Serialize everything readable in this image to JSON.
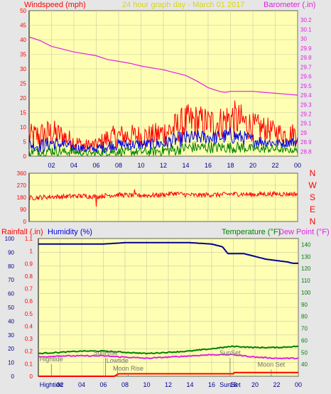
{
  "colors": {
    "frame_bg": "#e6e6e6",
    "plot_bg": "#ffffb4",
    "grid": "#c8c8a0",
    "red": "#ff0000",
    "blue": "#0000e0",
    "green": "#008000",
    "magenta": "#e020e0",
    "navy": "#000090",
    "title": "#d8d800",
    "gray_text": "#707070"
  },
  "header": {
    "left_title": "Windspeed (mph)",
    "center_title": "24 hour graph day - March 01 2017",
    "right_title": "Barometer (.in)"
  },
  "bottom_header": {
    "rainfall": "Rainfall (.in)",
    "humidity": "Humidity (%)",
    "temperature": "Temperature (°F)",
    "dewpoint": "Dew Point (°F)"
  },
  "x_ticks": [
    "02",
    "04",
    "06",
    "08",
    "10",
    "12",
    "14",
    "16",
    "18",
    "20",
    "22",
    "00"
  ],
  "chart_data": [
    {
      "type": "line",
      "name": "windspeed-barometer",
      "x_range_hours": [
        0,
        24
      ],
      "y_left": {
        "ticks": [
          0,
          5,
          10,
          15,
          20,
          25,
          30,
          35,
          40,
          45,
          50
        ],
        "ylim": [
          0,
          50
        ]
      },
      "y_right": {
        "ticks": [
          28.8,
          28.9,
          29.0,
          29.1,
          29.2,
          29.3,
          29.4,
          29.5,
          29.6,
          29.7,
          29.8,
          29.9,
          30.0,
          30.1,
          30.2
        ],
        "tick_labels": [
          "28.8",
          "28.9",
          "29",
          "29.1",
          "29.2",
          "29.3",
          "29.4",
          "29.5",
          "29.6",
          "29.7",
          "29.8",
          "29.9",
          "30",
          "30.1",
          "30.2"
        ],
        "ylim": [
          28.75,
          30.3
        ]
      },
      "series": [
        {
          "color": "red",
          "axis": "left",
          "x": [
            0,
            1,
            2,
            3,
            4,
            5,
            6,
            7,
            8,
            9,
            10,
            11,
            12,
            13,
            14,
            15,
            16,
            17,
            18,
            19,
            20,
            21,
            22,
            23,
            24
          ],
          "y_low": [
            3,
            2,
            3,
            3,
            2,
            1,
            2,
            2,
            3,
            3,
            3,
            3,
            3,
            4,
            5,
            6,
            6,
            6,
            6,
            6,
            5,
            5,
            5,
            4,
            4
          ],
          "y_high": [
            11,
            12,
            13,
            11,
            8,
            6,
            6,
            10,
            11,
            11,
            11,
            11,
            13,
            15,
            18,
            18,
            17,
            17,
            20,
            18,
            15,
            14,
            12,
            11,
            12
          ]
        },
        {
          "color": "blue",
          "axis": "left",
          "x": [
            0,
            1,
            2,
            3,
            4,
            5,
            6,
            7,
            8,
            9,
            10,
            11,
            12,
            13,
            14,
            15,
            16,
            17,
            18,
            19,
            20,
            21,
            22,
            23,
            24
          ],
          "y_low": [
            2,
            1,
            2,
            2,
            1,
            1,
            1,
            1,
            2,
            2,
            2,
            2,
            2,
            3,
            3,
            4,
            4,
            4,
            4,
            4,
            3,
            3,
            3,
            3,
            3
          ],
          "y_high": [
            6,
            6,
            7,
            6,
            5,
            4,
            4,
            6,
            6,
            6,
            6,
            6,
            7,
            8,
            9,
            9,
            9,
            9,
            10,
            9,
            8,
            7,
            6,
            6,
            7
          ]
        },
        {
          "color": "green",
          "axis": "left",
          "x": [
            0,
            1,
            2,
            3,
            4,
            5,
            6,
            7,
            8,
            9,
            10,
            11,
            12,
            13,
            14,
            15,
            16,
            17,
            18,
            19,
            20,
            21,
            22,
            23,
            24
          ],
          "y_low": [
            0,
            0,
            0,
            0,
            0,
            0,
            0,
            0,
            0,
            0,
            0,
            0,
            0,
            0,
            1,
            1,
            1,
            1,
            1,
            1,
            1,
            1,
            1,
            1,
            1
          ],
          "y_high": [
            3,
            3,
            4,
            3,
            3,
            2,
            2,
            3,
            3,
            3,
            3,
            3,
            4,
            4,
            5,
            5,
            5,
            5,
            5,
            5,
            4,
            4,
            4,
            3,
            3
          ]
        },
        {
          "color": "magenta",
          "axis": "right",
          "x": [
            0,
            1,
            2,
            3,
            4,
            5,
            6,
            7,
            8,
            9,
            10,
            11,
            12,
            13,
            14,
            15,
            16,
            17,
            17.5,
            18,
            19,
            20,
            21,
            22,
            23,
            24
          ],
          "y": [
            30.02,
            29.98,
            29.92,
            29.89,
            29.86,
            29.84,
            29.82,
            29.78,
            29.76,
            29.74,
            29.71,
            29.69,
            29.67,
            29.64,
            29.61,
            29.55,
            29.48,
            29.44,
            29.43,
            29.44,
            29.44,
            29.44,
            29.43,
            29.42,
            29.41,
            29.4
          ]
        }
      ]
    },
    {
      "type": "line",
      "name": "wind-direction",
      "x_range_hours": [
        0,
        24
      ],
      "y_left": {
        "ticks": [
          0,
          90,
          180,
          270,
          360
        ],
        "ylim": [
          0,
          360
        ]
      },
      "y_right_labels": [
        "N",
        "W",
        "S",
        "E",
        "N"
      ],
      "series": [
        {
          "color": "red",
          "x": [
            0,
            1,
            2,
            3,
            4,
            5,
            6,
            7,
            8,
            9,
            10,
            11,
            12,
            13,
            14,
            15,
            16,
            17,
            18,
            19,
            20,
            21,
            22,
            23,
            24
          ],
          "y": [
            175,
            180,
            185,
            185,
            190,
            190,
            185,
            195,
            200,
            195,
            195,
            195,
            200,
            210,
            200,
            195,
            200,
            200,
            205,
            205,
            200,
            205,
            205,
            205,
            205
          ],
          "noise": 18
        }
      ]
    },
    {
      "type": "line",
      "name": "humidity-temperature-rain",
      "x_range_hours": [
        0,
        24
      ],
      "y_left_rain": {
        "ticks": [
          0,
          0.1,
          0.2,
          0.3,
          0.4,
          0.5,
          0.6,
          0.7,
          0.8,
          0.9,
          1,
          1.1
        ],
        "tick_labels": [
          "0",
          "0.1",
          "0.2",
          "0.3",
          "0.4",
          "0.5",
          "0.6",
          "0.7",
          "0.8",
          "0.9",
          "1",
          "1.1"
        ],
        "ylim": [
          0,
          1.1
        ]
      },
      "y_left_humidity": {
        "ticks": [
          0,
          10,
          20,
          30,
          40,
          50,
          60,
          70,
          80,
          90,
          100
        ],
        "ylim": [
          0,
          100
        ]
      },
      "y_right_temp": {
        "ticks": [
          40,
          50,
          60,
          70,
          80,
          90,
          100,
          110,
          120,
          130,
          140
        ],
        "ylim": [
          30,
          145
        ]
      },
      "series": [
        {
          "color": "navy",
          "axis": "humidity",
          "x": [
            0,
            2,
            4,
            6,
            8,
            10,
            12,
            14,
            16,
            17,
            17.5,
            18,
            18.5,
            19,
            20,
            21,
            22,
            23,
            23.5,
            24
          ],
          "y": [
            96,
            96,
            96,
            96,
            97,
            97,
            97,
            97,
            96,
            94,
            89,
            89,
            89,
            89,
            87,
            85,
            84,
            83,
            82,
            82
          ]
        },
        {
          "color": "green",
          "axis": "temp",
          "x": [
            0,
            2,
            4,
            6,
            8,
            10,
            12,
            14,
            16,
            18,
            20,
            22,
            24
          ],
          "y": [
            49,
            50,
            51,
            51,
            50,
            49,
            50,
            51,
            53,
            55,
            54,
            54,
            55
          ]
        },
        {
          "color": "magenta",
          "axis": "temp",
          "x": [
            0,
            2,
            4,
            6,
            8,
            10,
            12,
            14,
            16,
            18,
            20,
            22,
            24
          ],
          "y": [
            46,
            47,
            47,
            47,
            46,
            45,
            46,
            47,
            48,
            48,
            46,
            45,
            45
          ]
        },
        {
          "color": "red",
          "axis": "rain",
          "x": [
            0,
            7,
            7.4,
            18,
            18.1,
            24
          ],
          "y": [
            0,
            0,
            0.02,
            0.02,
            0.03,
            0.03
          ]
        }
      ],
      "annotations": [
        {
          "label": "Hightide",
          "x": 1.2,
          "level": 0.12
        },
        {
          "label": "SunRise",
          "x": 6.2,
          "level": 0.2
        },
        {
          "label": "Lowtide",
          "x": 7.3,
          "level": 0.1
        },
        {
          "label": "Moon Rise",
          "x": 8.3,
          "level": 0.0
        },
        {
          "label": "SunSet",
          "x": 17.7,
          "level": 0.2
        },
        {
          "label": "Moon Set",
          "x": 21.5,
          "level": 0.05
        }
      ],
      "x_extra_labels": [
        {
          "label": "Hightide",
          "x": 1.2
        },
        {
          "label": "SunSet",
          "x": 17.7
        }
      ]
    }
  ]
}
